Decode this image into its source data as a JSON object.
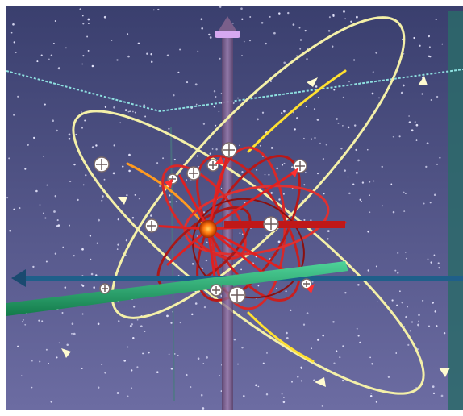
{
  "scene": {
    "description_free": true,
    "colors": {
      "sky_top": "#3a3f6e",
      "sky_bottom": "#6a6aa0",
      "star": "#e8e8ff",
      "outer_orbit": "#f4f0a8",
      "outer_orbit_hot": "#ffe030",
      "inner_orbit": "#d82828",
      "inner_orbit_dark": "#8a1010",
      "nucleus": "#ff7a10",
      "axis_vertical": "#7a5f8a",
      "axis_vertical_cap": "#d6a8f0",
      "axis_horizontal": "#1f5f8a",
      "axis_green": "#2aa870",
      "axis_cyan": "#8ee0e0",
      "frame_edge": "#2f7a70"
    },
    "icons": [
      "electron-marker-icon",
      "nucleus-icon",
      "arrow-left-icon",
      "arrow-up-icon"
    ]
  }
}
